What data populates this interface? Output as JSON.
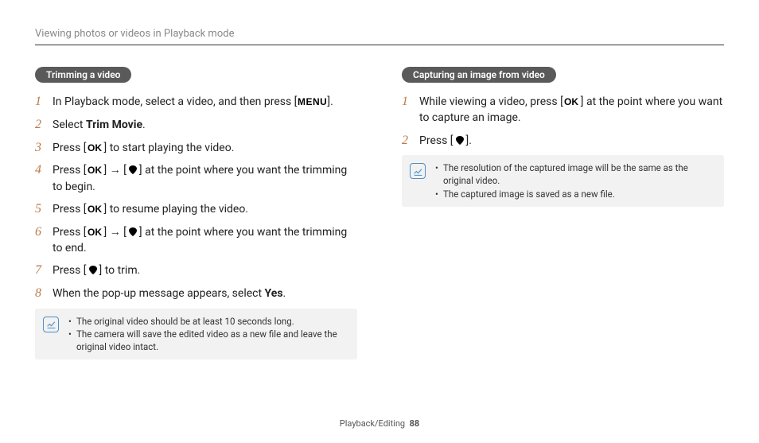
{
  "breadcrumb": "Viewing photos or videos in Playback mode",
  "left": {
    "heading": "Trimming a video",
    "steps": [
      {
        "n": "1",
        "pre": "In Playback mode, select a video, and then press [",
        "icon": "MENU",
        "post": "]."
      },
      {
        "n": "2",
        "pre": "Select ",
        "bold": "Trim Movie",
        "post": "."
      },
      {
        "n": "3",
        "pre": "Press [",
        "icon": "OK",
        "post": "] to start playing the video."
      },
      {
        "n": "4",
        "pre": "Press [",
        "icon": "OK",
        "mid": "] → [",
        "icon2": "DOWN",
        "post": "] at the point where you want the trimming to begin."
      },
      {
        "n": "5",
        "pre": "Press [",
        "icon": "OK",
        "post": "] to resume playing the video."
      },
      {
        "n": "6",
        "pre": "Press [",
        "icon": "OK",
        "mid": "] → [",
        "icon2": "DOWN",
        "post": "] at the point where you want the trimming to end."
      },
      {
        "n": "7",
        "pre": "Press [",
        "icon": "DOWN",
        "post": "] to trim."
      },
      {
        "n": "8",
        "pre": "When the pop-up message appears, select ",
        "bold": "Yes",
        "post": "."
      }
    ],
    "notes": [
      "The original video should be at least 10 seconds long.",
      "The camera will save the edited video as a new file and leave the original video intact."
    ]
  },
  "right": {
    "heading": "Capturing an image from video",
    "steps": [
      {
        "n": "1",
        "pre": "While viewing a video, press [",
        "icon": "OK",
        "post": "] at the point where you want to capture an image."
      },
      {
        "n": "2",
        "pre": "Press [",
        "icon": "DOWN",
        "post": "]."
      }
    ],
    "notes": [
      "The resolution of the captured image will be the same as the original video.",
      "The captured image is saved as a new file."
    ]
  },
  "footer": {
    "section": "Playback/Editing",
    "page": "88"
  },
  "colors": {
    "pill_bg": "#5a5a5a",
    "pill_fg": "#ffffff",
    "num": "#b97a4a",
    "note_bg": "#f2f2f2",
    "note_icon": "#4a8fc7",
    "rule": "#333333",
    "crumb": "#888888"
  }
}
